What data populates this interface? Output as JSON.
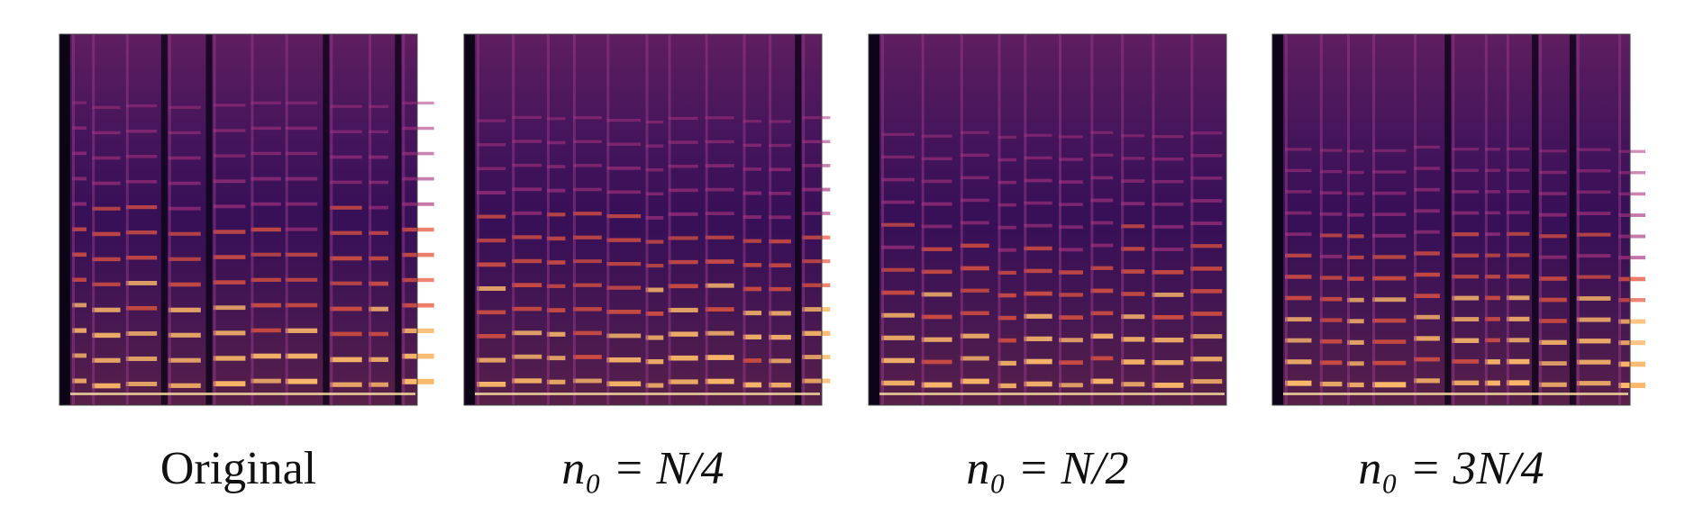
{
  "figure": {
    "panels": [
      {
        "caption": "Original"
      },
      {
        "caption": "n₀ = N/4"
      },
      {
        "caption": "n₀ = N/2"
      },
      {
        "caption": "n₀ = 3N/4"
      }
    ]
  }
}
